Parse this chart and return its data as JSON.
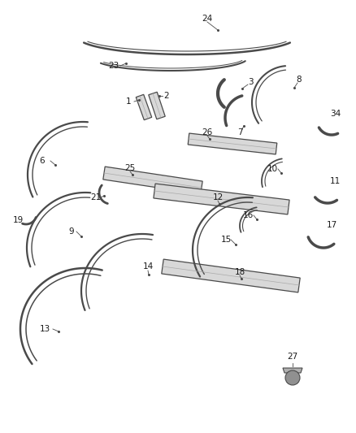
{
  "background_color": "#ffffff",
  "line_color": "#4a4a4a",
  "text_color": "#1a1a1a",
  "label_fontsize": 7.5,
  "fig_width": 4.38,
  "fig_height": 5.33,
  "dpi": 100
}
